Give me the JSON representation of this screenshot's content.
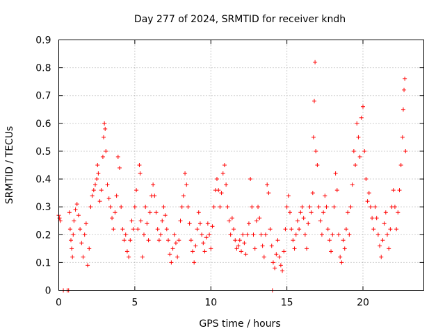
{
  "chart_data": {
    "type": "scatter",
    "title": "Day 277 of 2024, SRMTID for receiver kndh",
    "xlabel": "GPS time / hours",
    "ylabel": "SRMTID / TECUs",
    "xlim": [
      0,
      24
    ],
    "ylim": [
      0,
      0.9
    ],
    "xticks": [
      0,
      5,
      10,
      15,
      20
    ],
    "yticks": [
      0,
      0.1,
      0.2,
      0.3,
      0.4,
      0.5,
      0.6,
      0.7,
      0.8,
      0.9
    ],
    "grid": true,
    "marker": "+",
    "color": "#ff0000",
    "series": [
      {
        "name": "SRMTID",
        "points": [
          [
            0.0,
            0.27
          ],
          [
            0.05,
            0.26
          ],
          [
            0.1,
            0.25
          ],
          [
            0.3,
            0.0
          ],
          [
            0.55,
            0.0
          ],
          [
            0.65,
            0.0
          ],
          [
            0.7,
            0.28
          ],
          [
            0.75,
            0.22
          ],
          [
            0.8,
            0.18
          ],
          [
            0.85,
            0.15
          ],
          [
            0.9,
            0.12
          ],
          [
            0.95,
            0.2
          ],
          [
            1.0,
            0.25
          ],
          [
            1.1,
            0.29
          ],
          [
            1.2,
            0.31
          ],
          [
            1.3,
            0.27
          ],
          [
            1.4,
            0.22
          ],
          [
            1.5,
            0.17
          ],
          [
            1.6,
            0.12
          ],
          [
            1.7,
            0.2
          ],
          [
            1.8,
            0.24
          ],
          [
            1.9,
            0.09
          ],
          [
            2.0,
            0.15
          ],
          [
            2.1,
            0.3
          ],
          [
            2.2,
            0.34
          ],
          [
            2.3,
            0.36
          ],
          [
            2.4,
            0.38
          ],
          [
            2.5,
            0.4
          ],
          [
            2.55,
            0.45
          ],
          [
            2.6,
            0.42
          ],
          [
            2.7,
            0.32
          ],
          [
            2.8,
            0.36
          ],
          [
            2.9,
            0.48
          ],
          [
            2.95,
            0.55
          ],
          [
            3.0,
            0.6
          ],
          [
            3.05,
            0.58
          ],
          [
            3.1,
            0.5
          ],
          [
            3.2,
            0.38
          ],
          [
            3.3,
            0.33
          ],
          [
            3.4,
            0.3
          ],
          [
            3.5,
            0.26
          ],
          [
            3.6,
            0.22
          ],
          [
            3.7,
            0.28
          ],
          [
            3.8,
            0.34
          ],
          [
            3.9,
            0.48
          ],
          [
            4.0,
            0.44
          ],
          [
            4.1,
            0.3
          ],
          [
            4.2,
            0.22
          ],
          [
            4.3,
            0.18
          ],
          [
            4.4,
            0.2
          ],
          [
            4.5,
            0.14
          ],
          [
            4.6,
            0.12
          ],
          [
            4.7,
            0.18
          ],
          [
            4.8,
            0.25
          ],
          [
            4.9,
            0.22
          ],
          [
            5.0,
            0.3
          ],
          [
            5.1,
            0.36
          ],
          [
            5.2,
            0.22
          ],
          [
            5.3,
            0.45
          ],
          [
            5.35,
            0.42
          ],
          [
            5.4,
            0.25
          ],
          [
            5.5,
            0.12
          ],
          [
            5.6,
            0.2
          ],
          [
            5.7,
            0.3
          ],
          [
            5.8,
            0.24
          ],
          [
            5.9,
            0.18
          ],
          [
            6.0,
            0.28
          ],
          [
            6.1,
            0.34
          ],
          [
            6.2,
            0.38
          ],
          [
            6.3,
            0.34
          ],
          [
            6.4,
            0.28
          ],
          [
            6.5,
            0.22
          ],
          [
            6.6,
            0.18
          ],
          [
            6.7,
            0.2
          ],
          [
            6.8,
            0.25
          ],
          [
            6.9,
            0.3
          ],
          [
            7.0,
            0.27
          ],
          [
            7.1,
            0.22
          ],
          [
            7.2,
            0.18
          ],
          [
            7.3,
            0.13
          ],
          [
            7.4,
            0.1
          ],
          [
            7.5,
            0.15
          ],
          [
            7.6,
            0.2
          ],
          [
            7.7,
            0.17
          ],
          [
            7.8,
            0.12
          ],
          [
            7.9,
            0.18
          ],
          [
            8.0,
            0.25
          ],
          [
            8.1,
            0.3
          ],
          [
            8.2,
            0.34
          ],
          [
            8.3,
            0.42
          ],
          [
            8.4,
            0.38
          ],
          [
            8.5,
            0.3
          ],
          [
            8.6,
            0.24
          ],
          [
            8.7,
            0.18
          ],
          [
            8.8,
            0.14
          ],
          [
            8.9,
            0.1
          ],
          [
            9.0,
            0.16
          ],
          [
            9.1,
            0.22
          ],
          [
            9.2,
            0.28
          ],
          [
            9.3,
            0.24
          ],
          [
            9.4,
            0.2
          ],
          [
            9.5,
            0.17
          ],
          [
            9.6,
            0.14
          ],
          [
            9.7,
            0.19
          ],
          [
            9.8,
            0.24
          ],
          [
            9.9,
            0.2
          ],
          [
            10.0,
            0.15
          ],
          [
            10.1,
            0.23
          ],
          [
            10.2,
            0.3
          ],
          [
            10.3,
            0.36
          ],
          [
            10.4,
            0.4
          ],
          [
            10.5,
            0.36
          ],
          [
            10.6,
            0.3
          ],
          [
            10.7,
            0.35
          ],
          [
            10.8,
            0.42
          ],
          [
            10.9,
            0.45
          ],
          [
            11.0,
            0.38
          ],
          [
            11.1,
            0.3
          ],
          [
            11.2,
            0.25
          ],
          [
            11.3,
            0.2
          ],
          [
            11.4,
            0.26
          ],
          [
            11.5,
            0.22
          ],
          [
            11.6,
            0.18
          ],
          [
            11.7,
            0.15
          ],
          [
            11.8,
            0.16
          ],
          [
            11.9,
            0.18
          ],
          [
            12.0,
            0.14
          ],
          [
            12.1,
            0.2
          ],
          [
            12.2,
            0.17
          ],
          [
            12.3,
            0.13
          ],
          [
            12.4,
            0.2
          ],
          [
            12.5,
            0.24
          ],
          [
            12.6,
            0.4
          ],
          [
            12.7,
            0.3
          ],
          [
            12.8,
            0.2
          ],
          [
            12.9,
            0.15
          ],
          [
            13.0,
            0.25
          ],
          [
            13.1,
            0.3
          ],
          [
            13.2,
            0.26
          ],
          [
            13.3,
            0.2
          ],
          [
            13.4,
            0.16
          ],
          [
            13.5,
            0.12
          ],
          [
            13.6,
            0.2
          ],
          [
            13.7,
            0.38
          ],
          [
            13.8,
            0.35
          ],
          [
            13.9,
            0.22
          ],
          [
            14.0,
            0.16
          ],
          [
            14.05,
            0.0
          ],
          [
            14.1,
            0.1
          ],
          [
            14.2,
            0.08
          ],
          [
            14.3,
            0.13
          ],
          [
            14.4,
            0.18
          ],
          [
            14.5,
            0.12
          ],
          [
            14.6,
            0.09
          ],
          [
            14.7,
            0.07
          ],
          [
            14.8,
            0.14
          ],
          [
            14.9,
            0.22
          ],
          [
            15.0,
            0.3
          ],
          [
            15.1,
            0.34
          ],
          [
            15.2,
            0.28
          ],
          [
            15.3,
            0.22
          ],
          [
            15.4,
            0.18
          ],
          [
            15.5,
            0.15
          ],
          [
            15.6,
            0.2
          ],
          [
            15.7,
            0.25
          ],
          [
            15.8,
            0.22
          ],
          [
            15.9,
            0.28
          ],
          [
            16.0,
            0.3
          ],
          [
            16.1,
            0.26
          ],
          [
            16.2,
            0.2
          ],
          [
            16.3,
            0.15
          ],
          [
            16.4,
            0.24
          ],
          [
            16.5,
            0.3
          ],
          [
            16.6,
            0.28
          ],
          [
            16.7,
            0.35
          ],
          [
            16.75,
            0.55
          ],
          [
            16.8,
            0.68
          ],
          [
            16.85,
            0.82
          ],
          [
            16.9,
            0.5
          ],
          [
            17.0,
            0.45
          ],
          [
            17.1,
            0.3
          ],
          [
            17.2,
            0.25
          ],
          [
            17.3,
            0.2
          ],
          [
            17.4,
            0.28
          ],
          [
            17.5,
            0.34
          ],
          [
            17.6,
            0.3
          ],
          [
            17.7,
            0.22
          ],
          [
            17.8,
            0.18
          ],
          [
            17.9,
            0.14
          ],
          [
            18.0,
            0.2
          ],
          [
            18.1,
            0.3
          ],
          [
            18.2,
            0.42
          ],
          [
            18.3,
            0.36
          ],
          [
            18.4,
            0.2
          ],
          [
            18.5,
            0.12
          ],
          [
            18.6,
            0.1
          ],
          [
            18.7,
            0.18
          ],
          [
            18.8,
            0.15
          ],
          [
            18.9,
            0.22
          ],
          [
            19.0,
            0.28
          ],
          [
            19.1,
            0.2
          ],
          [
            19.2,
            0.3
          ],
          [
            19.3,
            0.38
          ],
          [
            19.4,
            0.5
          ],
          [
            19.5,
            0.45
          ],
          [
            19.6,
            0.6
          ],
          [
            19.7,
            0.55
          ],
          [
            19.8,
            0.48
          ],
          [
            19.9,
            0.62
          ],
          [
            20.0,
            0.66
          ],
          [
            20.1,
            0.5
          ],
          [
            20.2,
            0.4
          ],
          [
            20.3,
            0.32
          ],
          [
            20.4,
            0.35
          ],
          [
            20.5,
            0.3
          ],
          [
            20.6,
            0.26
          ],
          [
            20.7,
            0.22
          ],
          [
            20.8,
            0.3
          ],
          [
            20.9,
            0.26
          ],
          [
            21.0,
            0.2
          ],
          [
            21.1,
            0.16
          ],
          [
            21.2,
            0.12
          ],
          [
            21.3,
            0.18
          ],
          [
            21.4,
            0.24
          ],
          [
            21.5,
            0.28
          ],
          [
            21.6,
            0.2
          ],
          [
            21.7,
            0.15
          ],
          [
            21.8,
            0.22
          ],
          [
            21.9,
            0.3
          ],
          [
            22.0,
            0.36
          ],
          [
            22.1,
            0.3
          ],
          [
            22.2,
            0.22
          ],
          [
            22.3,
            0.28
          ],
          [
            22.4,
            0.36
          ],
          [
            22.5,
            0.45
          ],
          [
            22.6,
            0.55
          ],
          [
            22.65,
            0.65
          ],
          [
            22.7,
            0.72
          ],
          [
            22.75,
            0.76
          ],
          [
            22.8,
            0.5
          ]
        ]
      }
    ]
  }
}
